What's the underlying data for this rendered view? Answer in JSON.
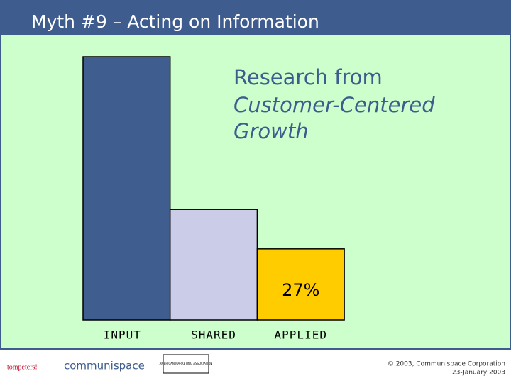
{
  "chart_data": {
    "type": "bar",
    "title": "Myth #9 – Acting on Information",
    "annotation": [
      "Research from",
      "Customer-Centered",
      "Growth"
    ],
    "categories": [
      "INPUT",
      "SHARED",
      "APPLIED"
    ],
    "values": [
      100,
      42,
      27
    ],
    "value_labels": [
      null,
      null,
      "27%"
    ],
    "colors": [
      "#405d8f",
      "#cbcde8",
      "#ffcc00"
    ],
    "ylim": [
      0,
      100
    ]
  },
  "footer": {
    "logos": [
      "tompeters!",
      "communispace",
      "AMERICAN MARKETING ASSOCIATION"
    ],
    "copyright": "© 2003, Communispace Corporation",
    "date": "23-January 2003"
  }
}
